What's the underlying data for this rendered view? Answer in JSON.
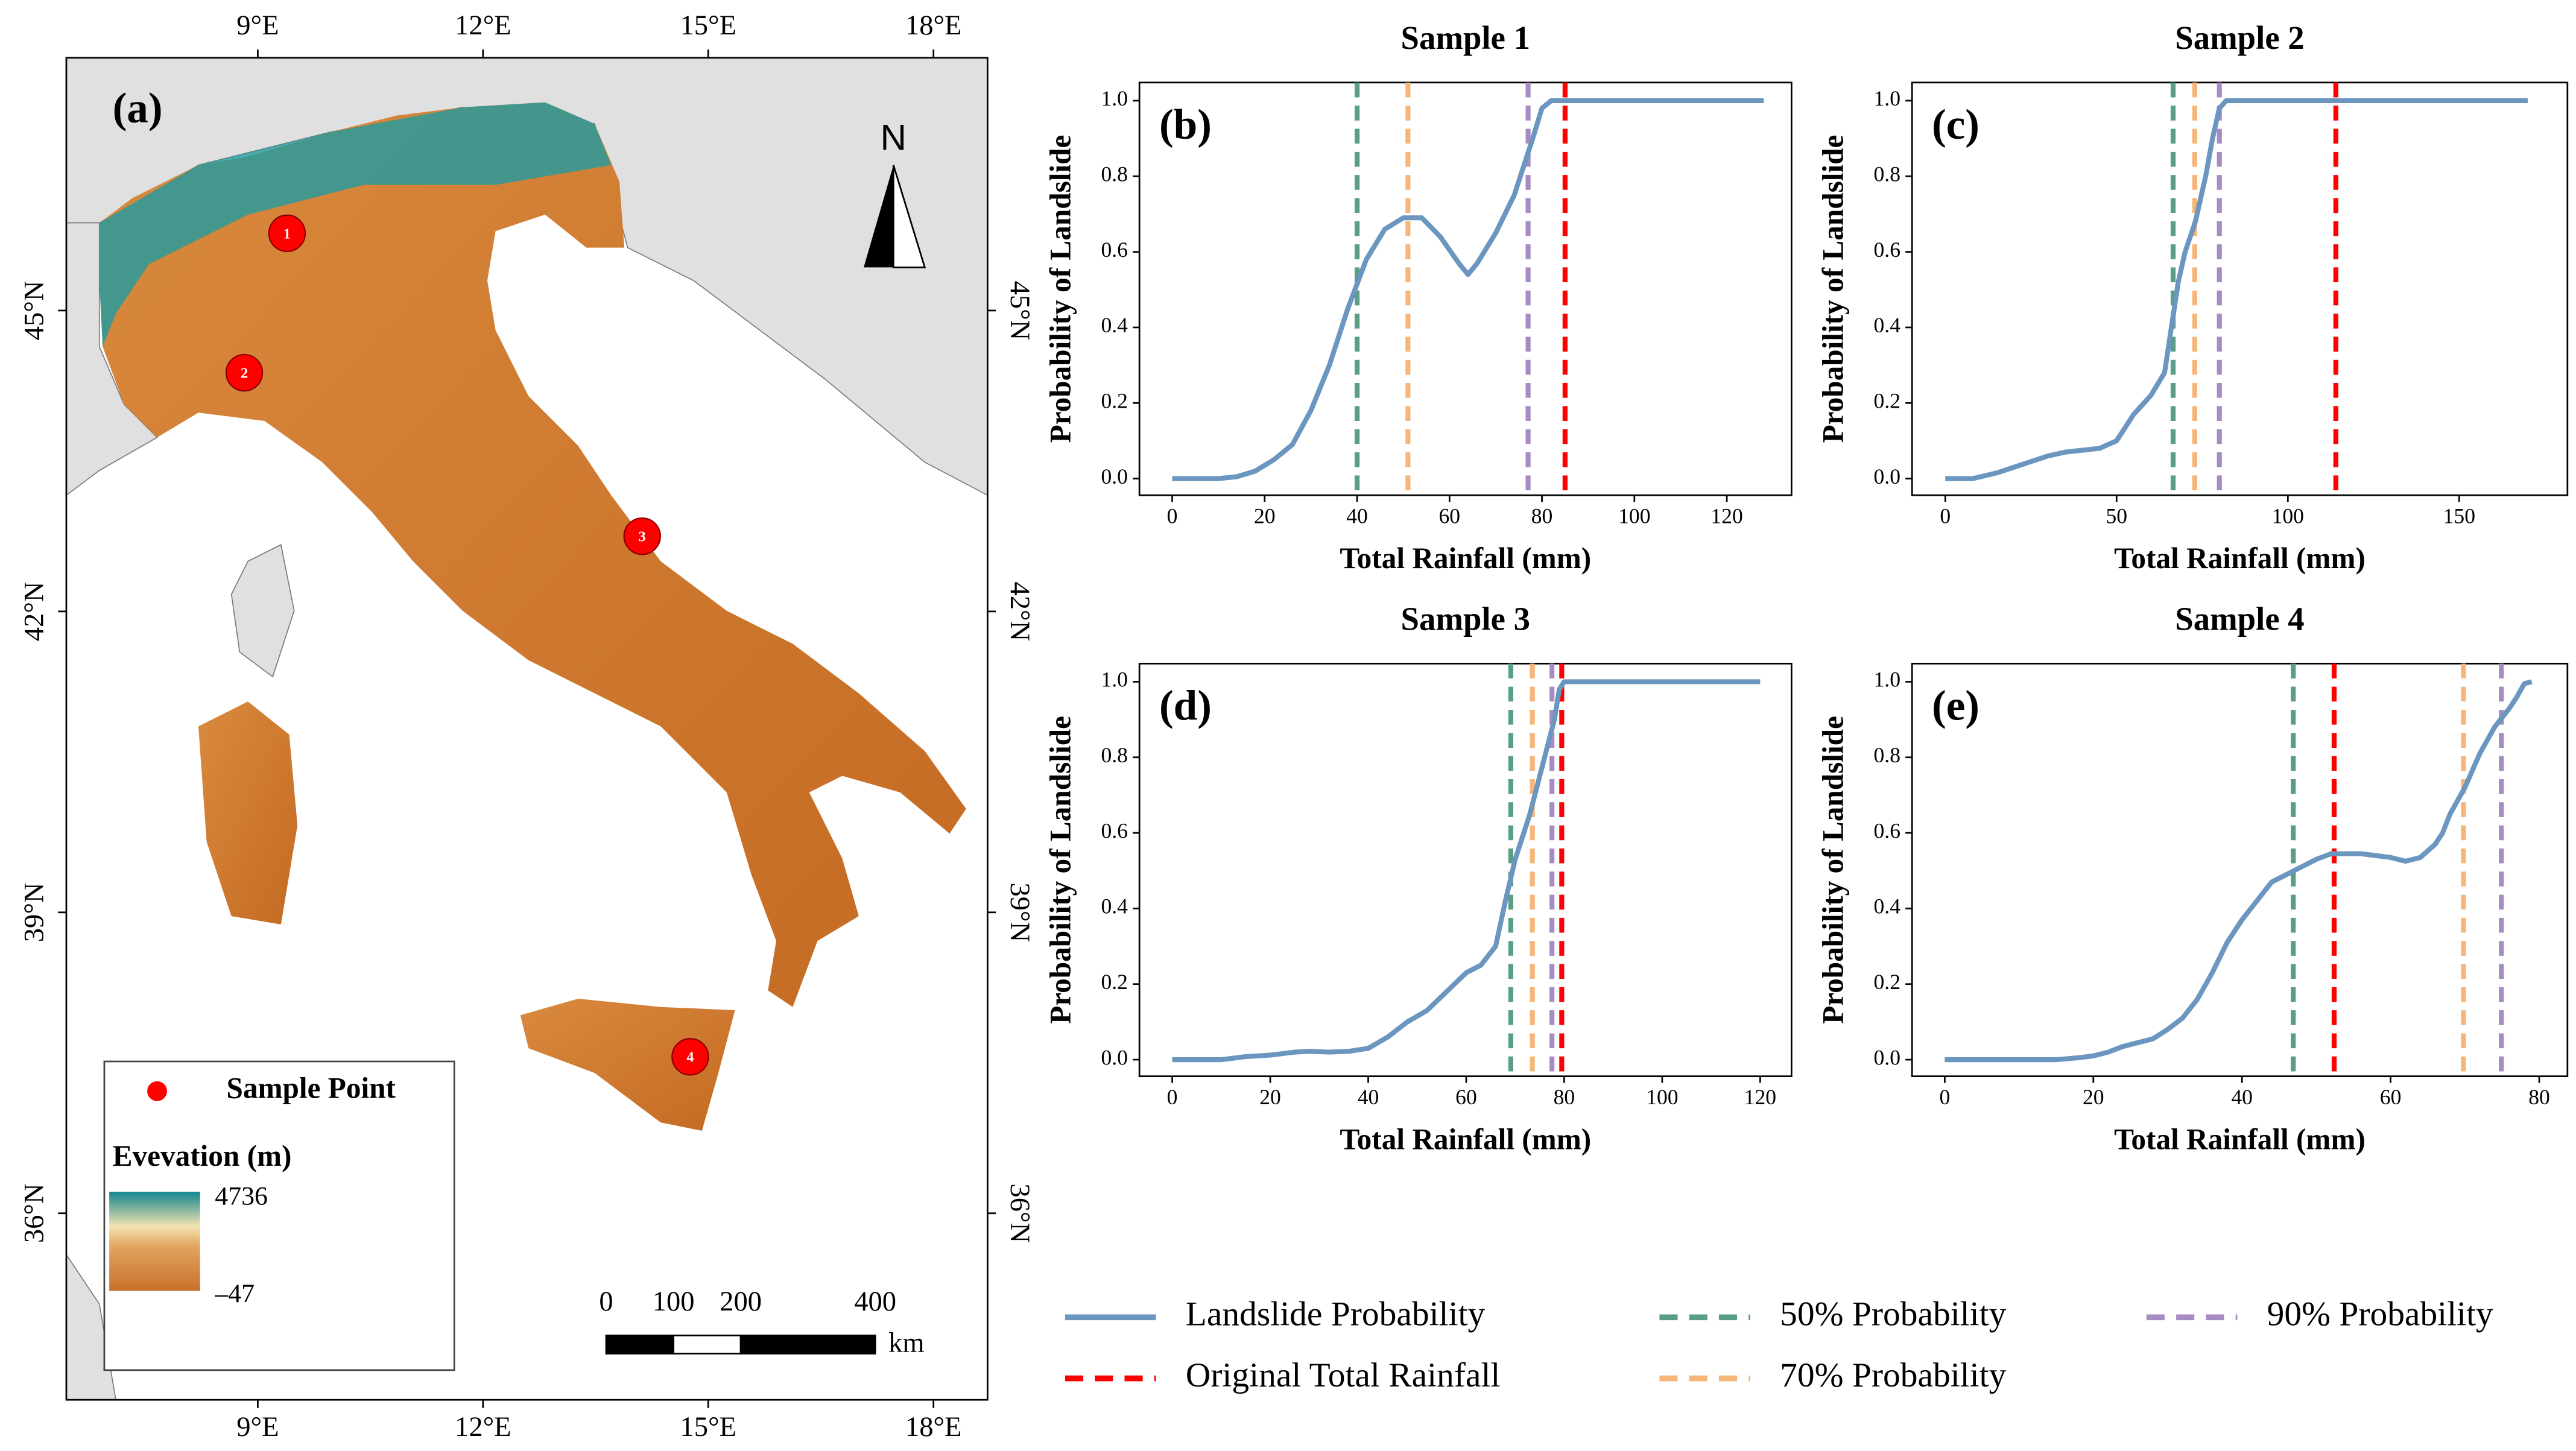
{
  "map": {
    "panel": "(a)",
    "lonticks": [
      {
        "value": 9,
        "label": "9°E"
      },
      {
        "value": 12,
        "label": "12°E"
      },
      {
        "value": 15,
        "label": "15°E"
      },
      {
        "value": 18,
        "label": "18°E"
      }
    ],
    "latticks": [
      {
        "value": 45,
        "label": "45°N"
      },
      {
        "value": 42,
        "label": "42°N"
      },
      {
        "value": 39,
        "label": "39°N"
      },
      {
        "value": 36,
        "label": "36°N"
      }
    ],
    "xlim": [
      6.45,
      18.72
    ],
    "ylim": [
      34.14,
      47.52
    ],
    "north": "N",
    "points": {
      "name": "Sample Point",
      "color": "#ff0000",
      "labels": [
        "1",
        "2",
        "3",
        "4"
      ],
      "lon": [
        9.39,
        8.82,
        14.12,
        14.76
      ],
      "lat": [
        45.77,
        44.38,
        42.75,
        37.56
      ]
    },
    "elevation": {
      "title": "Evevation (m)",
      "max": 4736,
      "min": {
        "value": -47,
        "label": "–47"
      }
    },
    "scalebar": {
      "ticks": [
        0,
        100,
        200,
        400
      ],
      "unit": "km"
    }
  },
  "legend": [
    {
      "name": "Landslide Probability",
      "color": "#6a96bf",
      "dash": false
    },
    {
      "name": "Original Total Rainfall",
      "color": "#ff0000",
      "dash": true
    },
    {
      "name": "50% Probability",
      "color": "#5a9e87",
      "dash": true
    },
    {
      "name": "70% Probability",
      "color": "#f7b679",
      "dash": true
    },
    {
      "name": "90% Probability",
      "color": "#a68cc3",
      "dash": true
    }
  ],
  "chart_data": [
    {
      "type": "line",
      "title": "Sample 1",
      "panel": "(b)",
      "xlabel": "Total Rainfall (mm)",
      "ylabel": "Probability of Landslide",
      "xlim": [
        -7.1,
        134
      ],
      "ylim": [
        -0.044,
        1.048
      ],
      "xticks": [
        0,
        20,
        40,
        60,
        80,
        100,
        120
      ],
      "yticks": [
        {
          "value": 0,
          "label": "0.0"
        },
        0.2,
        0.4,
        0.6,
        0.8,
        {
          "value": 1,
          "label": "1.0"
        }
      ],
      "x": [
        0,
        5,
        10,
        14,
        18,
        22,
        26,
        30,
        34,
        38,
        42,
        46,
        50,
        54,
        58,
        62,
        64,
        66,
        70,
        74,
        78,
        80,
        82,
        90,
        100,
        110,
        128
      ],
      "values": [
        0,
        0,
        0,
        0.005,
        0.02,
        0.05,
        0.09,
        0.18,
        0.3,
        0.45,
        0.58,
        0.66,
        0.69,
        0.69,
        0.64,
        0.57,
        0.54,
        0.57,
        0.65,
        0.75,
        0.9,
        0.98,
        1,
        1,
        1,
        1,
        1
      ],
      "vlines": [
        85,
        40,
        51,
        77
      ]
    },
    {
      "type": "line",
      "title": "Sample 2",
      "panel": "(c)",
      "xlabel": "Total Rainfall (mm)",
      "ylabel": "Probability of Landslide",
      "xlim": [
        -9.7,
        181.6
      ],
      "ylim": [
        -0.044,
        1.048
      ],
      "xticks": [
        0,
        50,
        100,
        150
      ],
      "yticks": [
        {
          "value": 0,
          "label": "0.0"
        },
        0.2,
        0.4,
        0.6,
        0.8,
        {
          "value": 1,
          "label": "1.0"
        }
      ],
      "x": [
        0,
        8,
        15,
        20,
        25,
        30,
        35,
        40,
        45,
        50,
        55,
        60,
        64,
        66,
        68,
        70,
        73,
        76,
        78,
        80,
        82,
        100,
        130,
        170
      ],
      "values": [
        0,
        0,
        0.015,
        0.03,
        0.045,
        0.06,
        0.07,
        0.075,
        0.08,
        0.1,
        0.17,
        0.22,
        0.28,
        0.4,
        0.52,
        0.6,
        0.68,
        0.8,
        0.9,
        0.98,
        1,
        1,
        1,
        1
      ],
      "vlines": [
        114,
        66.5,
        72.8,
        80
      ]
    },
    {
      "type": "line",
      "title": "Sample 3",
      "panel": "(d)",
      "xlabel": "Total Rainfall (mm)",
      "ylabel": "Probability of Landslide",
      "xlim": [
        -6.7,
        126.4
      ],
      "ylim": [
        -0.044,
        1.048
      ],
      "xticks": [
        0,
        20,
        40,
        60,
        80,
        100,
        120
      ],
      "yticks": [
        {
          "value": 0,
          "label": "0.0"
        },
        0.2,
        0.4,
        0.6,
        0.8,
        {
          "value": 1,
          "label": "1.0"
        }
      ],
      "x": [
        0,
        5,
        10,
        15,
        20,
        25,
        28,
        32,
        36,
        40,
        44,
        48,
        52,
        56,
        60,
        63,
        66,
        68,
        70,
        73,
        76,
        78,
        79,
        80,
        90,
        120
      ],
      "values": [
        0,
        0,
        0,
        0.008,
        0.012,
        0.02,
        0.022,
        0.02,
        0.022,
        0.03,
        0.06,
        0.1,
        0.13,
        0.18,
        0.23,
        0.25,
        0.3,
        0.42,
        0.53,
        0.65,
        0.8,
        0.9,
        0.98,
        1,
        1,
        1
      ],
      "vlines": [
        79.5,
        69.1,
        73.5,
        77.5
      ]
    },
    {
      "type": "line",
      "title": "Sample 4",
      "panel": "(e)",
      "xlabel": "Total Rainfall (mm)",
      "ylabel": "Probability of Landslide",
      "xlim": [
        -4.4,
        83.8
      ],
      "ylim": [
        -0.044,
        1.048
      ],
      "xticks": [
        0,
        20,
        40,
        60,
        80
      ],
      "yticks": [
        {
          "value": 0,
          "label": "0.0"
        },
        0.2,
        0.4,
        0.6,
        0.8,
        {
          "value": 1,
          "label": "1.0"
        }
      ],
      "x": [
        0,
        5,
        10,
        15,
        18,
        20,
        22,
        24,
        26,
        28,
        30,
        32,
        34,
        36,
        38,
        40,
        42,
        44,
        46,
        48,
        50,
        52,
        54,
        56,
        58,
        60,
        62,
        64,
        66,
        67,
        68,
        70,
        72,
        74,
        76,
        77,
        78,
        79
      ],
      "values": [
        0,
        0,
        0,
        0,
        0.005,
        0.01,
        0.02,
        0.035,
        0.045,
        0.055,
        0.08,
        0.11,
        0.16,
        0.23,
        0.31,
        0.37,
        0.42,
        0.47,
        0.49,
        0.51,
        0.53,
        0.545,
        0.545,
        0.545,
        0.54,
        0.535,
        0.525,
        0.535,
        0.57,
        0.6,
        0.65,
        0.72,
        0.81,
        0.88,
        0.93,
        0.96,
        0.995,
        1
      ],
      "vlines": [
        52.4,
        46.9,
        69.8,
        74.9
      ]
    }
  ]
}
